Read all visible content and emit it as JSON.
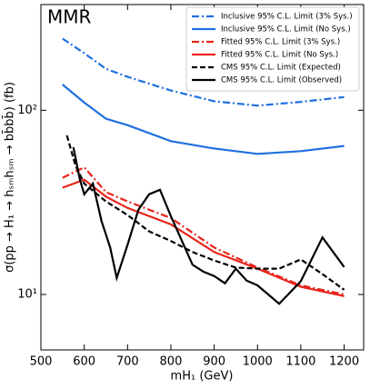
{
  "chart_data": {
    "type": "line",
    "annotation": "MMR",
    "xlabel": "mH₁ (GeV)",
    "ylabel": "σ(pp → H₁ → hₛₘhₛₘ → bb̄bb̄) (fb)",
    "xlim": [
      500,
      1245
    ],
    "xticks": [
      500,
      600,
      700,
      800,
      900,
      1000,
      1100,
      1200
    ],
    "ylim": [
      5,
      375
    ],
    "log_y": true,
    "yticks": [
      {
        "value": 10,
        "label": "10¹"
      },
      {
        "value": 100,
        "label": "10²"
      }
    ],
    "legend": "upper right",
    "series": [
      {
        "name": "Inclusive 95% C.L. Limit (3% Sys.)",
        "color": "#1f6fe0",
        "dash": "dashdot",
        "x": [
          550,
          600,
          650,
          700,
          800,
          900,
          1000,
          1100,
          1200
        ],
        "values": [
          245,
          204,
          168,
          152,
          128,
          112,
          106,
          111,
          118
        ]
      },
      {
        "name": "Inclusive 95% C.L. Limit (No Sys.)",
        "color": "#1f6fe0",
        "dash": "solid",
        "x": [
          550,
          600,
          650,
          700,
          800,
          900,
          1000,
          1100,
          1200
        ],
        "values": [
          138,
          110,
          90,
          83,
          68,
          62,
          58,
          60,
          64
        ]
      },
      {
        "name": "Fitted 95% C.L. Limit (3% Sys.)",
        "color": "#e8251c",
        "dash": "dashdot",
        "x": [
          550,
          600,
          650,
          700,
          800,
          900,
          1000,
          1100,
          1200
        ],
        "values": [
          43,
          49,
          36,
          32,
          26,
          18,
          14,
          11.2,
          10
        ]
      },
      {
        "name": "Fitted 95% C.L. Limit (No Sys.)",
        "color": "#e8251c",
        "dash": "solid",
        "x": [
          550,
          600,
          650,
          700,
          800,
          900,
          1000,
          1100,
          1200
        ],
        "values": [
          38,
          42,
          34,
          29.5,
          24,
          17,
          13.8,
          11,
          9.8
        ]
      },
      {
        "name": "CMS 95% C.L. Limit (Expected)",
        "color": "#000000",
        "dash": "dashed",
        "x": [
          560,
          580,
          600,
          650,
          700,
          750,
          800,
          850,
          900,
          950,
          1000,
          1050,
          1100,
          1150,
          1200
        ],
        "values": [
          73,
          50,
          40,
          32,
          27,
          22,
          19.5,
          17,
          15.3,
          14,
          13.8,
          13.8,
          15.5,
          12.9,
          10.6
        ]
      },
      {
        "name": "CMS 95% C.L. Limit (Observed)",
        "color": "#000000",
        "dash": "solid",
        "x": [
          575,
          590,
          600,
          620,
          640,
          660,
          675,
          700,
          725,
          750,
          775,
          800,
          850,
          875,
          900,
          925,
          950,
          975,
          1000,
          1050,
          1100,
          1150,
          1200
        ],
        "values": [
          63,
          42,
          35,
          40,
          25,
          18,
          12.3,
          18.6,
          28.8,
          35,
          37,
          26.6,
          14.5,
          13.3,
          12.6,
          11.5,
          13.8,
          11.9,
          11.2,
          8.9,
          11.8,
          20.4,
          14.1
        ]
      }
    ]
  }
}
